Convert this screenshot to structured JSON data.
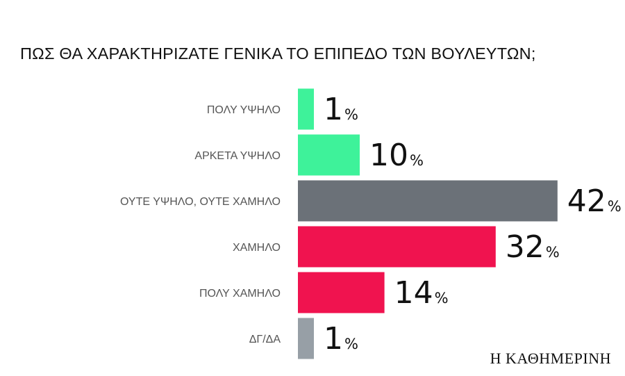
{
  "chart_data": {
    "type": "bar",
    "orientation": "horizontal",
    "title": "ΠΩΣ ΘΑ ΧΑΡΑΚΤΗΡΙΖΑΤΕ ΓΕΝΙΚΑ ΤΟ ΕΠΙΠΕΔΟ ΤΩΝ ΒΟΥΛΕΥΤΩΝ;",
    "categories": [
      "ΠΟΛΥ ΥΨΗΛΟ",
      "ΑΡΚΕΤΑ ΥΨΗΛΟ",
      "ΟΥΤΕ ΥΨΗΛΟ, ΟΥΤΕ ΧΑΜΗΛΟ",
      "ΧΑΜΗΛΟ",
      "ΠΟΛΥ ΧΑΜΗΛΟ",
      "ΔΓ/ΔΑ"
    ],
    "values": [
      1,
      10,
      42,
      32,
      14,
      1
    ],
    "value_suffix": "%",
    "bar_colors": [
      "#3ef29a",
      "#3ef29a",
      "#6b7178",
      "#f0134f",
      "#f0134f",
      "#979fa6"
    ],
    "grid": false,
    "legend": "none"
  },
  "brand": "Η ΚΑΘΗΜΕΡΙΝΗ"
}
